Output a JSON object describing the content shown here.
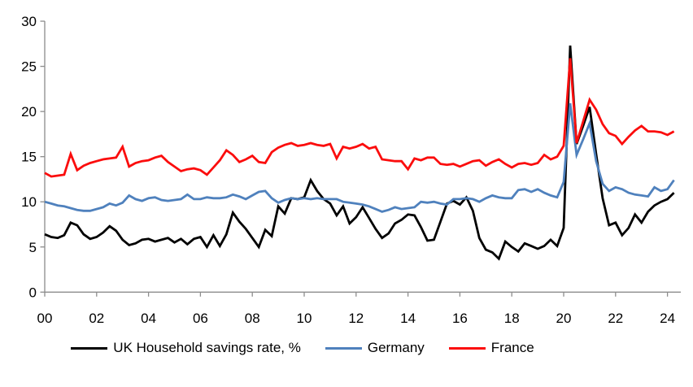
{
  "chart_data": {
    "type": "line",
    "title": "",
    "xlabel": "",
    "ylabel": "",
    "grid": false,
    "legend_position": "bottom",
    "ylim": [
      0,
      30
    ],
    "y_ticks": [
      0,
      5,
      10,
      15,
      20,
      25,
      30
    ],
    "y_tick_labels": [
      "0",
      "5",
      "10",
      "15",
      "20",
      "25",
      "30"
    ],
    "x_start": 2000,
    "x_step_years": 0.25,
    "x_tick_labels": [
      "00",
      "02",
      "04",
      "06",
      "08",
      "10",
      "12",
      "14",
      "16",
      "18",
      "20",
      "22",
      "24"
    ],
    "x_tick_interval_years": 2,
    "axis_color": "#8c8c8c",
    "series": [
      {
        "name": "UK Household savings rate, %",
        "color": "#000000",
        "values": [
          6.4,
          6.1,
          6.0,
          6.3,
          7.7,
          7.4,
          6.4,
          5.9,
          6.1,
          6.6,
          7.3,
          6.8,
          5.8,
          5.2,
          5.4,
          5.8,
          5.9,
          5.6,
          5.8,
          6.0,
          5.5,
          5.9,
          5.3,
          5.9,
          6.1,
          5.0,
          6.3,
          5.1,
          6.4,
          8.8,
          7.8,
          7.0,
          6.0,
          5.0,
          6.9,
          6.2,
          9.5,
          8.7,
          10.4,
          10.3,
          10.5,
          12.4,
          11.2,
          10.3,
          9.8,
          8.5,
          9.5,
          7.6,
          8.3,
          9.4,
          8.2,
          7.0,
          6.0,
          6.5,
          7.6,
          8.0,
          8.6,
          8.5,
          7.2,
          5.7,
          5.8,
          7.8,
          9.8,
          10.1,
          9.7,
          10.5,
          9.0,
          6.0,
          4.7,
          4.4,
          3.7,
          5.6,
          5.0,
          4.5,
          5.4,
          5.1,
          4.8,
          5.1,
          5.8,
          5.1,
          7.1,
          27.3,
          16.4,
          18.4,
          20.5,
          15.3,
          10.4,
          7.4,
          7.7,
          6.3,
          7.1,
          8.6,
          7.7,
          8.9,
          9.6,
          10.0,
          10.3,
          11.0
        ]
      },
      {
        "name": "Germany",
        "color": "#4f81bd",
        "values": [
          10.0,
          9.8,
          9.6,
          9.5,
          9.3,
          9.1,
          9.0,
          9.0,
          9.2,
          9.4,
          9.8,
          9.6,
          9.9,
          10.7,
          10.3,
          10.1,
          10.4,
          10.5,
          10.2,
          10.1,
          10.2,
          10.3,
          10.8,
          10.3,
          10.3,
          10.5,
          10.4,
          10.4,
          10.5,
          10.8,
          10.6,
          10.3,
          10.7,
          11.1,
          11.2,
          10.4,
          9.9,
          10.2,
          10.4,
          10.3,
          10.4,
          10.3,
          10.4,
          10.3,
          10.3,
          10.3,
          10.0,
          9.9,
          9.8,
          9.7,
          9.5,
          9.2,
          8.9,
          9.1,
          9.4,
          9.2,
          9.3,
          9.4,
          10.0,
          9.9,
          10.0,
          9.8,
          9.7,
          10.3,
          10.3,
          10.4,
          10.3,
          10.0,
          10.4,
          10.7,
          10.5,
          10.4,
          10.4,
          11.3,
          11.4,
          11.1,
          11.4,
          11.0,
          10.7,
          10.5,
          12.2,
          20.9,
          15.2,
          16.9,
          18.7,
          14.5,
          12.0,
          11.2,
          11.6,
          11.4,
          11.0,
          10.8,
          10.7,
          10.6,
          11.6,
          11.2,
          11.4,
          12.4
        ]
      },
      {
        "name": "France",
        "color": "#fb0d0d",
        "values": [
          13.2,
          12.8,
          12.9,
          13.0,
          15.3,
          13.5,
          14.0,
          14.3,
          14.5,
          14.7,
          14.8,
          14.9,
          16.1,
          13.9,
          14.3,
          14.5,
          14.6,
          14.9,
          15.1,
          14.4,
          13.9,
          13.4,
          13.6,
          13.7,
          13.5,
          13.0,
          13.8,
          14.6,
          15.7,
          15.2,
          14.4,
          14.7,
          15.1,
          14.4,
          14.3,
          15.5,
          16.0,
          16.3,
          16.5,
          16.2,
          16.3,
          16.5,
          16.3,
          16.2,
          16.4,
          14.8,
          16.1,
          15.9,
          16.1,
          16.4,
          15.9,
          16.1,
          14.7,
          14.6,
          14.5,
          14.5,
          13.6,
          14.8,
          14.6,
          14.9,
          14.9,
          14.2,
          14.1,
          14.2,
          13.9,
          14.2,
          14.5,
          14.6,
          14.0,
          14.4,
          14.7,
          14.2,
          13.8,
          14.2,
          14.3,
          14.1,
          14.3,
          15.2,
          14.7,
          15.0,
          16.2,
          25.9,
          16.5,
          18.9,
          21.3,
          20.2,
          18.6,
          17.6,
          17.3,
          16.4,
          17.2,
          17.9,
          18.4,
          17.8,
          17.8,
          17.7,
          17.4,
          17.8
        ]
      }
    ]
  }
}
